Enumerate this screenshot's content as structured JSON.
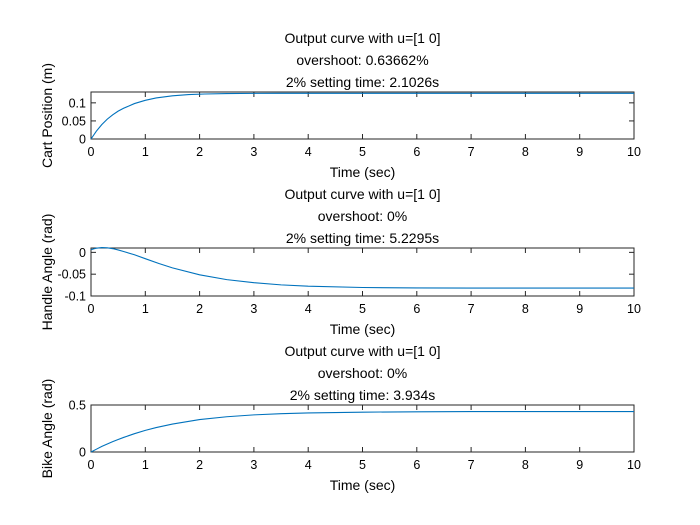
{
  "figure": {
    "background": "#ffffff",
    "line_color": "#0072bd"
  },
  "chart_data": [
    {
      "type": "line",
      "title": [
        "Output curve with u=[1 0]",
        "overshoot: 0.63662%",
        "2% setting time: 2.1026s"
      ],
      "xlabel": "Time (sec)",
      "ylabel": "Cart Position (m)",
      "xlim": [
        0,
        10
      ],
      "ylim": [
        0,
        0.13
      ],
      "xticks": [
        0,
        1,
        2,
        3,
        4,
        5,
        6,
        7,
        8,
        9,
        10
      ],
      "yticks": [
        0,
        0.05,
        0.1
      ],
      "ytick_labels": [
        "0",
        "0.05",
        "0.1"
      ],
      "series": [
        {
          "x": [
            0,
            0.1,
            0.2,
            0.3,
            0.4,
            0.5,
            0.6,
            0.8,
            1.0,
            1.2,
            1.5,
            1.8,
            2.1,
            2.5,
            3.0,
            3.5,
            4,
            5,
            6,
            7,
            8,
            9,
            10
          ],
          "y": [
            0,
            0.022,
            0.04,
            0.055,
            0.067,
            0.077,
            0.085,
            0.098,
            0.107,
            0.1135,
            0.1195,
            0.1228,
            0.1245,
            0.1256,
            0.1262,
            0.1264,
            0.1264,
            0.1263,
            0.1263,
            0.1263,
            0.1263,
            0.1263,
            0.1263
          ]
        }
      ]
    },
    {
      "type": "line",
      "title": [
        "Output curve with u=[1 0]",
        "overshoot: 0%",
        "2% setting time: 5.2295s"
      ],
      "xlabel": "Time (sec)",
      "ylabel": "Handle Angle (rad)",
      "xlim": [
        0,
        10
      ],
      "ylim": [
        -0.1,
        0.01
      ],
      "xticks": [
        0,
        1,
        2,
        3,
        4,
        5,
        6,
        7,
        8,
        9,
        10
      ],
      "yticks": [
        -0.1,
        -0.05,
        0
      ],
      "ytick_labels": [
        "-0.1",
        "-0.05",
        "0"
      ],
      "series": [
        {
          "x": [
            0,
            0.05,
            0.1,
            0.2,
            0.3,
            0.4,
            0.5,
            0.6,
            0.8,
            1.0,
            1.25,
            1.5,
            2.0,
            2.5,
            3.0,
            3.5,
            4.0,
            5,
            6,
            7,
            8,
            9,
            10
          ],
          "y": [
            0.006,
            0.008,
            0.0095,
            0.011,
            0.0105,
            0.0085,
            0.0055,
            0.002,
            -0.0055,
            -0.0145,
            -0.0255,
            -0.0355,
            -0.0515,
            -0.0625,
            -0.0695,
            -0.0745,
            -0.0775,
            -0.0805,
            -0.0815,
            -0.0818,
            -0.0818,
            -0.0818,
            -0.0818
          ]
        }
      ]
    },
    {
      "type": "line",
      "title": [
        "Output curve with u=[1 0]",
        "overshoot: 0%",
        "2% setting time: 3.934s"
      ],
      "xlabel": "Time (sec)",
      "ylabel": "Bike Angle (rad)",
      "xlim": [
        0,
        10
      ],
      "ylim": [
        0,
        0.5
      ],
      "xticks": [
        0,
        1,
        2,
        3,
        4,
        5,
        6,
        7,
        8,
        9,
        10
      ],
      "yticks": [
        0,
        0.5
      ],
      "ytick_labels": [
        "0",
        "0.5"
      ],
      "series": [
        {
          "x": [
            0,
            0.1,
            0.2,
            0.3,
            0.4,
            0.5,
            0.6,
            0.8,
            1.0,
            1.2,
            1.5,
            2.0,
            2.5,
            3.0,
            3.5,
            4.0,
            5,
            6,
            7,
            8,
            9,
            10
          ],
          "y": [
            0,
            0.03,
            0.06,
            0.085,
            0.11,
            0.133,
            0.155,
            0.195,
            0.23,
            0.26,
            0.297,
            0.345,
            0.375,
            0.395,
            0.408,
            0.416,
            0.424,
            0.428,
            0.43,
            0.43,
            0.43,
            0.43
          ]
        }
      ]
    }
  ]
}
